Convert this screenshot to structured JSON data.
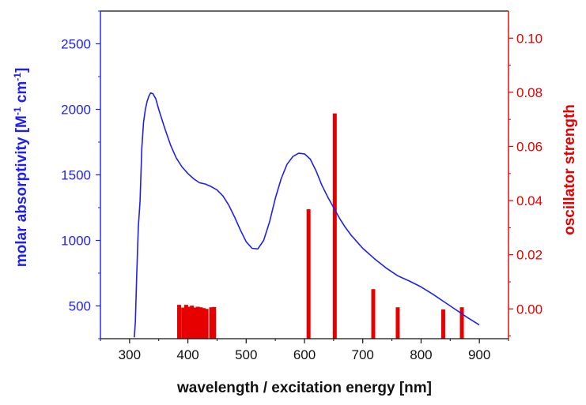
{
  "chart_data": {
    "type": "line",
    "xlabel": "wavelength / excitation energy [nm]",
    "ylabel": "molar absorptivity [M",
    "ylabel_sup1": "-1",
    "ylabel_mid": " cm",
    "ylabel_sup2": "-1",
    "ylabel_end": "]",
    "y2label": "oscillator strength",
    "xlim": [
      250,
      950
    ],
    "ylim": [
      250,
      2750
    ],
    "y2lim": [
      -0.011,
      0.11
    ],
    "x_ticks": [
      300,
      400,
      500,
      600,
      700,
      800,
      900
    ],
    "y_ticks": [
      500,
      1000,
      1500,
      2000,
      2500
    ],
    "y2_ticks": [
      0.0,
      0.02,
      0.04,
      0.06,
      0.08,
      0.1
    ],
    "x_tick_labels": [
      "300",
      "400",
      "500",
      "600",
      "700",
      "800",
      "900"
    ],
    "y_tick_labels": [
      "500",
      "1000",
      "1500",
      "2000",
      "2500"
    ],
    "y2_tick_labels": [
      "0.00",
      "0.02",
      "0.04",
      "0.06",
      "0.08",
      "0.10"
    ],
    "colors": {
      "absorptivity": "#1f1ff5",
      "oscillator": "#e60000",
      "axis": "#111111"
    },
    "series": [
      {
        "axis": "left",
        "style": "line",
        "x": [
          308,
          310,
          312,
          315,
          318,
          321,
          324,
          327,
          330,
          333,
          336,
          340,
          345,
          350,
          360,
          370,
          380,
          390,
          400,
          410,
          420,
          430,
          440,
          450,
          460,
          470,
          480,
          490,
          500,
          510,
          520,
          530,
          540,
          550,
          560,
          570,
          580,
          590,
          600,
          610,
          620,
          630,
          640,
          650,
          660,
          670,
          680,
          690,
          700,
          720,
          740,
          760,
          780,
          800,
          820,
          840,
          860,
          880,
          900
        ],
        "y": [
          260,
          380,
          700,
          1100,
          1300,
          1700,
          1900,
          2000,
          2060,
          2100,
          2125,
          2120,
          2080,
          2000,
          1860,
          1730,
          1630,
          1560,
          1510,
          1470,
          1440,
          1430,
          1410,
          1385,
          1340,
          1270,
          1180,
          1080,
          990,
          940,
          935,
          1000,
          1140,
          1320,
          1470,
          1580,
          1640,
          1665,
          1660,
          1620,
          1530,
          1420,
          1330,
          1250,
          1170,
          1100,
          1040,
          990,
          940,
          860,
          790,
          730,
          690,
          645,
          590,
          530,
          470,
          410,
          355
        ]
      },
      {
        "axis": "right",
        "style": "stick",
        "x": [
          385,
          392,
          397,
          402,
          407,
          412,
          417,
          422,
          427,
          432,
          440,
          445,
          607,
          652,
          718,
          760,
          838,
          870
        ],
        "y": [
          0.0015,
          0.0005,
          0.0015,
          0.0008,
          0.0012,
          0.0005,
          0.0008,
          0.0006,
          0.0003,
          0.0,
          0.0006,
          0.0007,
          0.0368,
          0.0722,
          0.0073,
          0.0006,
          -0.0002,
          0.0006
        ]
      }
    ]
  }
}
